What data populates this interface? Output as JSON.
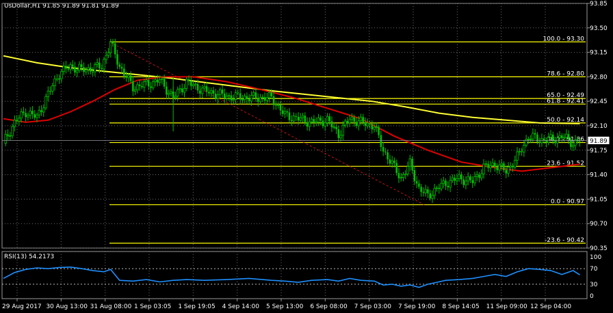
{
  "header": {
    "text": "UsDollar,H1  91.85 91.89 91.81 91.89"
  },
  "colors": {
    "background": "#000000",
    "grid": "#6f6f6f",
    "candle_up": "#00c000",
    "candle_down": "#00c000",
    "fib": "#ffff00",
    "ma_fast": "#e00000",
    "ma_slow": "#ffff33",
    "rsi": "#1e90ff",
    "text": "#ffffff"
  },
  "current_price": {
    "value": 91.89,
    "label": "91.89"
  },
  "chart_data": [
    {
      "type": "candlestick",
      "title": "UsDollar,H1",
      "ohlc_readout": [
        91.85,
        91.89,
        91.81,
        91.89
      ],
      "ylim": [
        90.35,
        93.85
      ],
      "y_ticks": [
        "93.85",
        "93.50",
        "93.15",
        "92.80",
        "92.45",
        "92.10",
        "91.75",
        "91.40",
        "91.05",
        "90.70",
        "90.35"
      ],
      "x_tick_labels": [
        "29 Aug 2017",
        "30 Aug 13:00",
        "31 Aug 08:00",
        "1 Sep 03:05",
        "1 Sep 19:05",
        "4 Sep 14:00",
        "5 Sep 13:00",
        "6 Sep 08:00",
        "7 Sep 03:00",
        "7 Sep 19:00",
        "8 Sep 14:05",
        "11 Sep 09:00",
        "12 Sep 04:00"
      ],
      "close_path": [
        [
          0,
          91.85
        ],
        [
          5,
          92.15
        ],
        [
          10,
          92.3
        ],
        [
          15,
          92.22
        ],
        [
          20,
          92.55
        ],
        [
          25,
          92.85
        ],
        [
          30,
          92.95
        ],
        [
          35,
          92.9
        ],
        [
          40,
          92.92
        ],
        [
          44,
          92.95
        ],
        [
          48,
          93.28
        ],
        [
          52,
          92.95
        ],
        [
          58,
          92.65
        ],
        [
          65,
          92.7
        ],
        [
          70,
          92.75
        ],
        [
          76,
          92.5
        ],
        [
          82,
          92.72
        ],
        [
          90,
          92.6
        ],
        [
          100,
          92.52
        ],
        [
          110,
          92.5
        ],
        [
          120,
          92.5
        ],
        [
          126,
          92.25
        ],
        [
          132,
          92.2
        ],
        [
          138,
          92.15
        ],
        [
          145,
          92.18
        ],
        [
          150,
          91.98
        ],
        [
          155,
          92.2
        ],
        [
          160,
          92.15
        ],
        [
          166,
          92.1
        ],
        [
          170,
          91.75
        ],
        [
          174,
          91.55
        ],
        [
          178,
          91.35
        ],
        [
          182,
          91.55
        ],
        [
          186,
          91.2
        ],
        [
          190,
          91.1
        ],
        [
          194,
          91.2
        ],
        [
          198,
          91.28
        ],
        [
          204,
          91.35
        ],
        [
          210,
          91.3
        ],
        [
          215,
          91.5
        ],
        [
          220,
          91.55
        ],
        [
          225,
          91.45
        ],
        [
          230,
          91.65
        ],
        [
          235,
          91.95
        ],
        [
          240,
          91.9
        ],
        [
          245,
          91.9
        ],
        [
          250,
          91.95
        ],
        [
          255,
          91.85
        ],
        [
          258,
          91.89
        ]
      ],
      "ma_fast": [
        [
          0,
          92.2
        ],
        [
          10,
          92.15
        ],
        [
          20,
          92.18
        ],
        [
          30,
          92.3
        ],
        [
          40,
          92.45
        ],
        [
          50,
          92.62
        ],
        [
          60,
          92.75
        ],
        [
          72,
          92.8
        ],
        [
          85,
          92.8
        ],
        [
          100,
          92.73
        ],
        [
          115,
          92.62
        ],
        [
          130,
          92.5
        ],
        [
          145,
          92.35
        ],
        [
          160,
          92.2
        ],
        [
          175,
          91.95
        ],
        [
          190,
          91.75
        ],
        [
          205,
          91.58
        ],
        [
          220,
          91.5
        ],
        [
          232,
          91.45
        ],
        [
          245,
          91.5
        ],
        [
          258,
          91.55
        ]
      ],
      "ma_slow": [
        [
          0,
          93.1
        ],
        [
          15,
          93.0
        ],
        [
          30,
          92.93
        ],
        [
          45,
          92.88
        ],
        [
          60,
          92.83
        ],
        [
          75,
          92.78
        ],
        [
          90,
          92.72
        ],
        [
          105,
          92.66
        ],
        [
          120,
          92.6
        ],
        [
          135,
          92.55
        ],
        [
          150,
          92.5
        ],
        [
          165,
          92.45
        ],
        [
          180,
          92.37
        ],
        [
          195,
          92.28
        ],
        [
          210,
          92.22
        ],
        [
          225,
          92.18
        ],
        [
          240,
          92.14
        ],
        [
          258,
          92.13
        ]
      ],
      "fibonacci": [
        {
          "level": "100.0",
          "price": 93.3,
          "label": "100.0 - 93.30"
        },
        {
          "level": "78.6",
          "price": 92.8,
          "label": "78.6 - 92.80"
        },
        {
          "level": "65.0",
          "price": 92.49,
          "label": "65.0 - 92.49"
        },
        {
          "level": "61.8",
          "price": 92.41,
          "label": "61.8 - 92.41"
        },
        {
          "level": "50.0",
          "price": 92.14,
          "label": "50.0 - 92.14"
        },
        {
          "level": "38.2",
          "price": 91.86,
          "label": "38.2 - 91.86"
        },
        {
          "level": "23.6",
          "price": 91.52,
          "label": "23.6 - 91.52"
        },
        {
          "level": "0.0",
          "price": 90.97,
          "label": "0.0 - 90.97"
        },
        {
          "level": "-23.6",
          "price": 90.42,
          "label": "-23.6 - 90.42"
        }
      ]
    },
    {
      "type": "line",
      "title": "RSI(13) 54.2173",
      "ylim": [
        0,
        100
      ],
      "y_ticks": [
        "100",
        "70",
        "30",
        "0"
      ],
      "levels": [
        70,
        30
      ],
      "rsi_path": [
        [
          0,
          45
        ],
        [
          5,
          60
        ],
        [
          10,
          68
        ],
        [
          15,
          72
        ],
        [
          20,
          70
        ],
        [
          25,
          73
        ],
        [
          30,
          74
        ],
        [
          35,
          70
        ],
        [
          40,
          65
        ],
        [
          45,
          62
        ],
        [
          48,
          68
        ],
        [
          52,
          40
        ],
        [
          58,
          38
        ],
        [
          64,
          42
        ],
        [
          70,
          36
        ],
        [
          76,
          40
        ],
        [
          82,
          42
        ],
        [
          90,
          40
        ],
        [
          100,
          42
        ],
        [
          110,
          45
        ],
        [
          120,
          40
        ],
        [
          126,
          38
        ],
        [
          132,
          35
        ],
        [
          138,
          40
        ],
        [
          145,
          42
        ],
        [
          150,
          38
        ],
        [
          155,
          45
        ],
        [
          160,
          40
        ],
        [
          166,
          38
        ],
        [
          170,
          28
        ],
        [
          174,
          30
        ],
        [
          178,
          25
        ],
        [
          182,
          28
        ],
        [
          186,
          22
        ],
        [
          190,
          30
        ],
        [
          194,
          35
        ],
        [
          198,
          40
        ],
        [
          204,
          42
        ],
        [
          210,
          45
        ],
        [
          215,
          50
        ],
        [
          220,
          55
        ],
        [
          225,
          50
        ],
        [
          230,
          62
        ],
        [
          235,
          70
        ],
        [
          240,
          68
        ],
        [
          245,
          65
        ],
        [
          250,
          55
        ],
        [
          255,
          65
        ],
        [
          258,
          54
        ]
      ]
    }
  ]
}
